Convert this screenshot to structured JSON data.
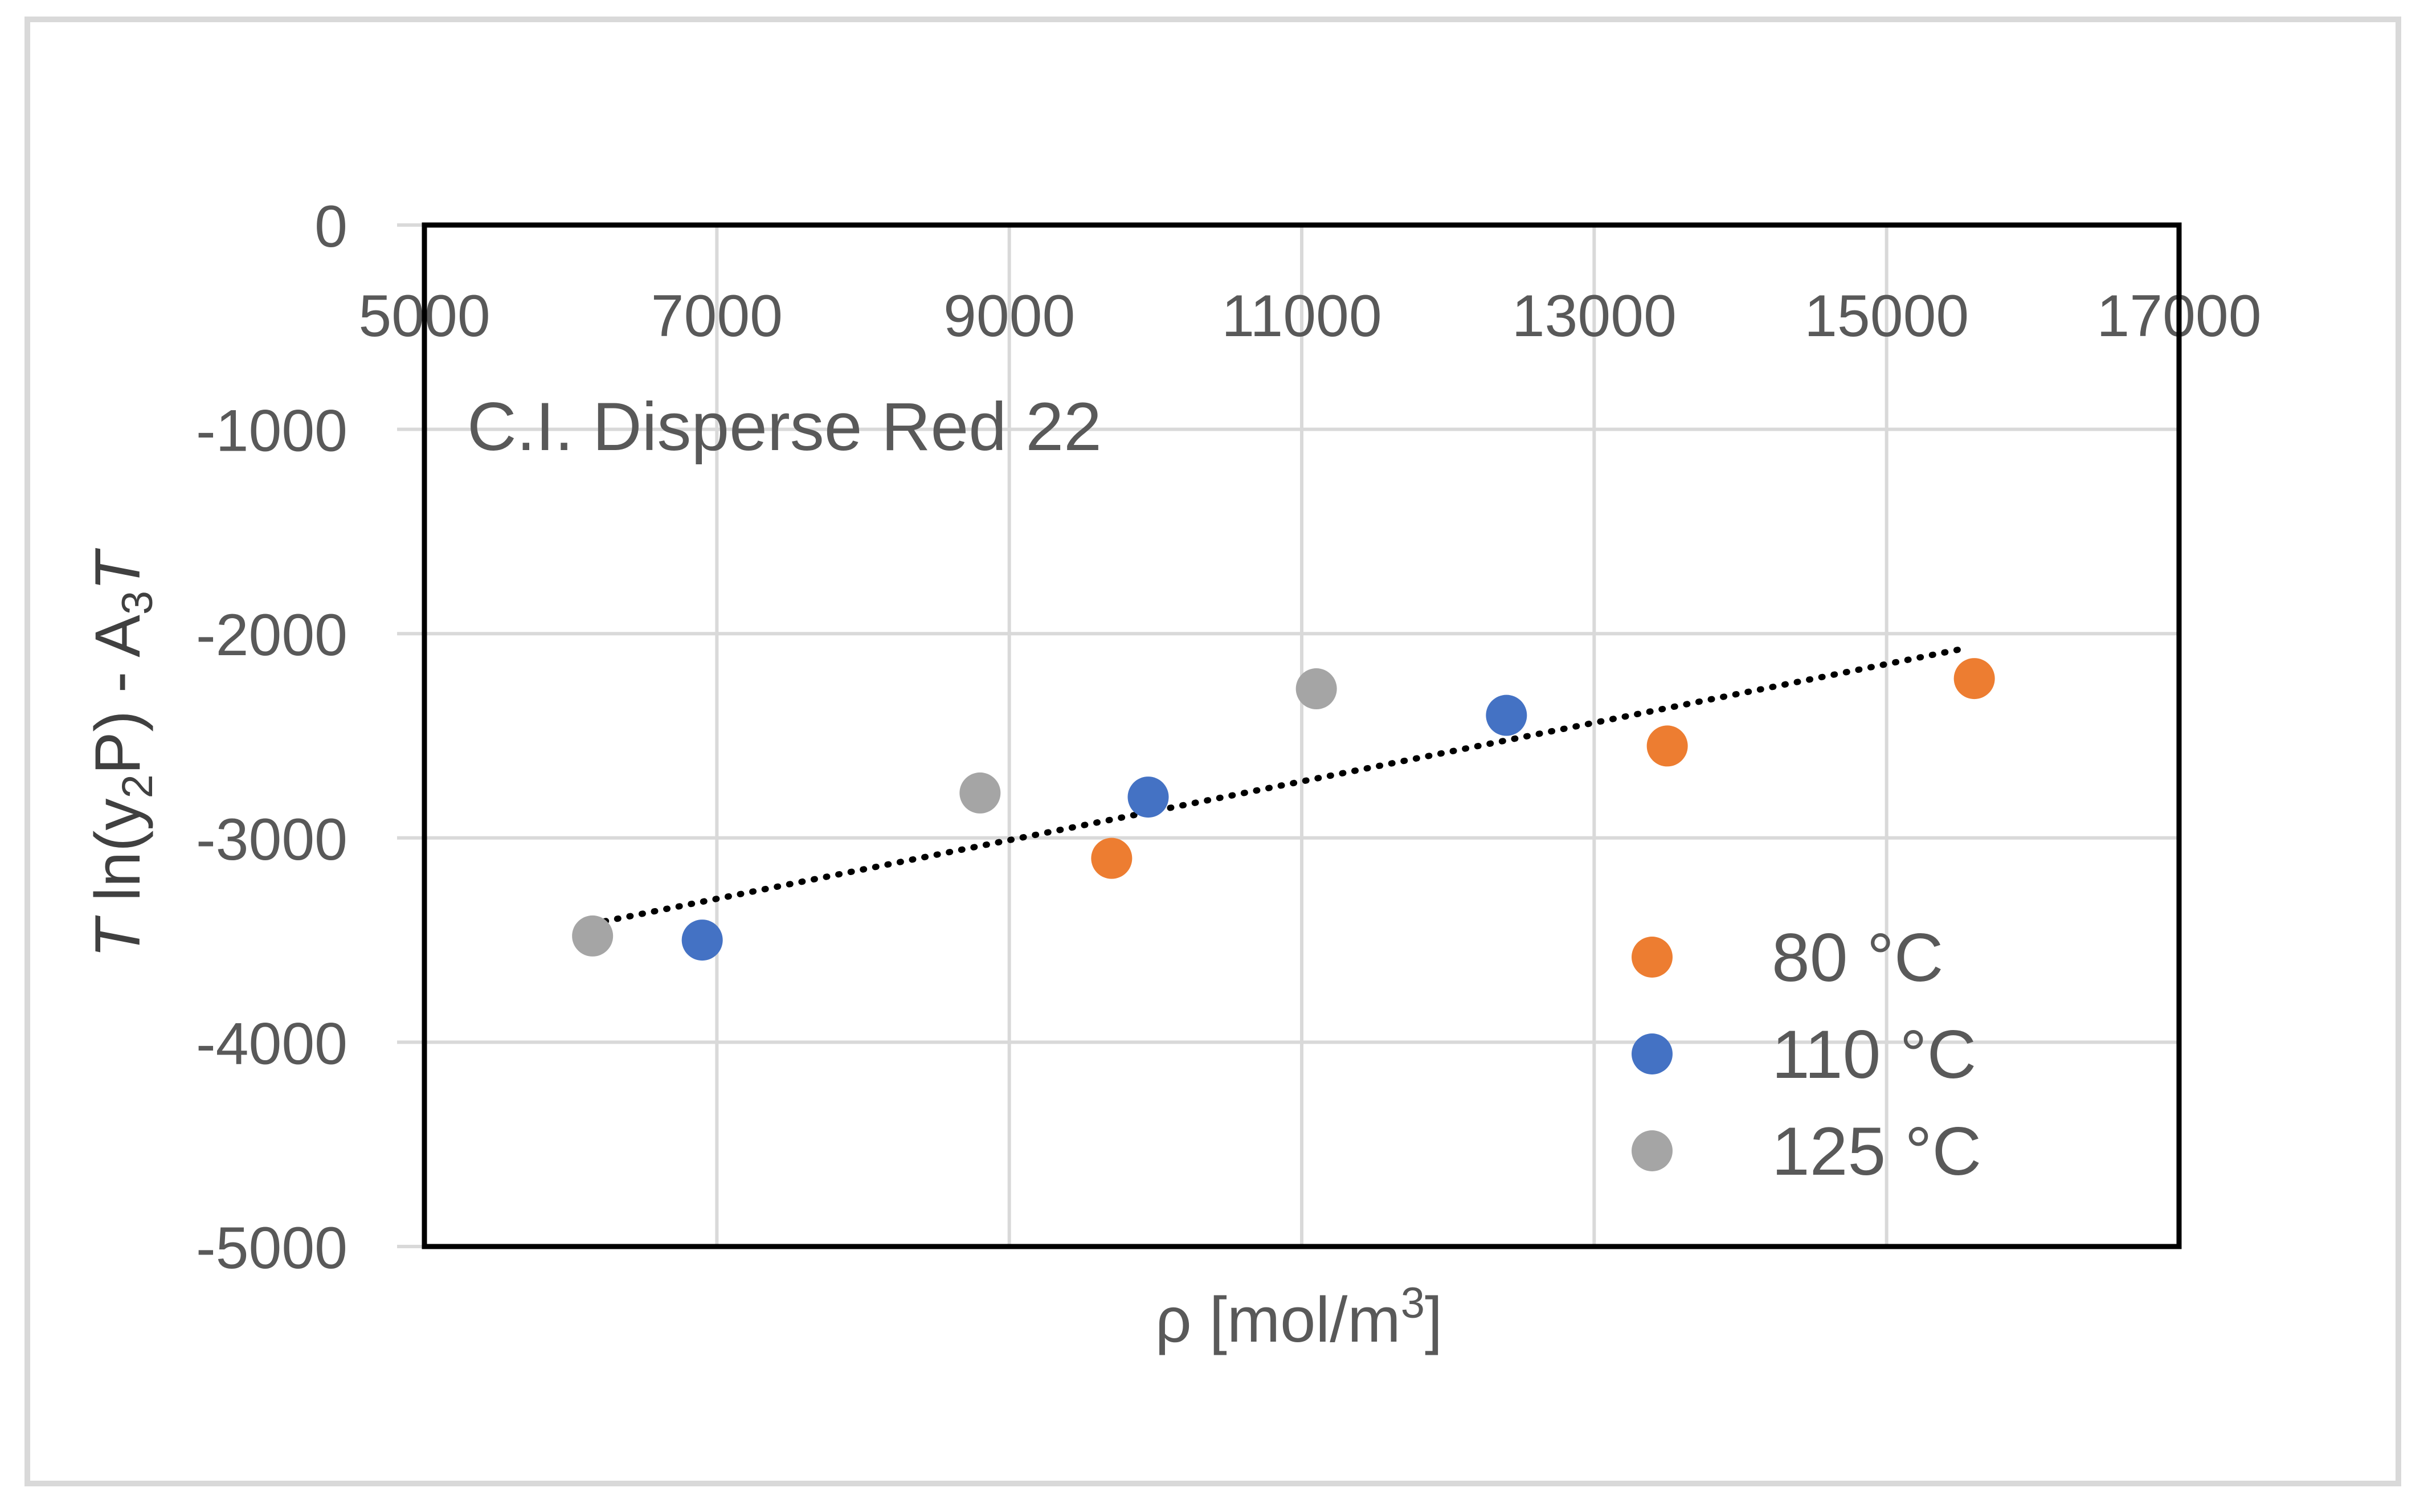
{
  "chart_data": {
    "type": "scatter",
    "annotation": "C.I. Disperse Red 22",
    "ylabel": {
      "italic_prefix": "T",
      "prefix_rest": " ln(y",
      "sub1": "2",
      "mid": "P) - A",
      "sub2": "3",
      "italic_suffix": "T"
    },
    "xlabel": {
      "main": "ρ [mol/m",
      "sup": "3",
      "end": "]"
    },
    "xlim": [
      5000,
      17000
    ],
    "ylim": [
      -5000,
      0
    ],
    "x_ticks": [
      "5000",
      "7000",
      "9000",
      "11000",
      "13000",
      "15000",
      "17000"
    ],
    "x_tick_values": [
      5000,
      7000,
      9000,
      11000,
      13000,
      15000,
      17000
    ],
    "y_ticks": [
      "0",
      "-1000",
      "-2000",
      "-3000",
      "-4000",
      "-5000"
    ],
    "y_tick_values": [
      0,
      -1000,
      -2000,
      -3000,
      -4000,
      -5000
    ],
    "x_axis_position": "top",
    "grid": true,
    "legend_position": "bottom-right",
    "series": [
      {
        "name": "80 °C",
        "color": "#ED7D31",
        "points": [
          [
            9700,
            -3100
          ],
          [
            13500,
            -2550
          ],
          [
            15600,
            -2220
          ]
        ]
      },
      {
        "name": "110 °C",
        "color": "#4472C4",
        "points": [
          [
            6900,
            -3500
          ],
          [
            9950,
            -2800
          ],
          [
            12400,
            -2400
          ]
        ]
      },
      {
        "name": "125 °C",
        "color": "#A5A5A5",
        "points": [
          [
            6150,
            -3480
          ],
          [
            8800,
            -2780
          ],
          [
            11100,
            -2270
          ]
        ]
      }
    ],
    "trendline": {
      "style": "dotted",
      "color": "#000000",
      "x_start": 6150,
      "y_start": -3420,
      "x_end": 15550,
      "y_end": -2070
    }
  }
}
